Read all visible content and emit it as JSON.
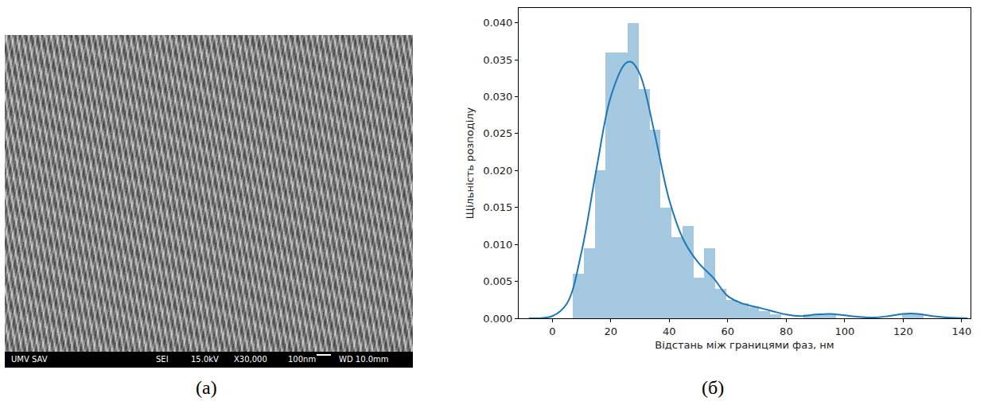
{
  "chart_data": {
    "type": "histogram",
    "panel_label": "(б)",
    "x_label": "Відстань між границями фаз, нм",
    "y_label": "Щільність розподілу",
    "xlim": [
      -11.5,
      143
    ],
    "ylim": [
      0,
      0.042
    ],
    "xticks": [
      0,
      20,
      40,
      60,
      80,
      100,
      120,
      140
    ],
    "yticks": [
      {
        "value": 0,
        "label": "0.000"
      },
      {
        "value": 0.005,
        "label": "0.005"
      },
      {
        "value": 0.01,
        "label": "0.010"
      },
      {
        "value": 0.015,
        "label": "0.015"
      },
      {
        "value": 0.02,
        "label": "0.020"
      },
      {
        "value": 0.025,
        "label": "0.025"
      },
      {
        "value": 0.03,
        "label": "0.030"
      },
      {
        "value": 0.035,
        "label": "0.035"
      },
      {
        "value": 0.04,
        "label": "0.040"
      }
    ],
    "grid": false,
    "series": [
      {
        "type": "histogram",
        "color": "#1f77b4",
        "bins": [
          7,
          10.75,
          14.5,
          18.25,
          22,
          25.75,
          29.5,
          33.25,
          37,
          40.75,
          44.5,
          48.25,
          52,
          55.75,
          59.5,
          63.25,
          67,
          70.75,
          74.5,
          78.25,
          82,
          85.75,
          89.5,
          93.25,
          97,
          100.75,
          104.5,
          108.25,
          112,
          115.75,
          119.5,
          123.25,
          127
        ],
        "values": [
          0.006,
          0.0095,
          0.02,
          0.036,
          0.036,
          0.04,
          0.031,
          0.0255,
          0.015,
          0.011,
          0.0125,
          0.0055,
          0.0095,
          0.004,
          0.0025,
          0.002,
          0.0015,
          0.001,
          0.0005,
          0,
          0,
          0.0005,
          0.0005,
          0.0005,
          0,
          0,
          0,
          0,
          0,
          0,
          0.0005,
          0.0005
        ]
      },
      {
        "type": "line",
        "color": "#1f77b4",
        "x": [
          -8,
          0,
          5,
          10,
          15,
          20,
          25,
          27,
          30,
          35,
          40,
          45,
          50,
          55,
          60,
          65,
          70,
          75,
          80,
          85,
          90,
          95,
          100,
          105,
          110,
          115,
          120,
          125,
          130,
          135,
          142
        ],
        "values": [
          0,
          0.0003,
          0.002,
          0.009,
          0.02,
          0.03,
          0.0345,
          0.0347,
          0.033,
          0.025,
          0.016,
          0.0105,
          0.0075,
          0.0055,
          0.003,
          0.002,
          0.0015,
          0.001,
          0.0005,
          0.0003,
          0.0005,
          0.0006,
          0.0004,
          0.0002,
          0.0001,
          0.0003,
          0.0006,
          0.0006,
          0.0003,
          0.0001,
          0
        ]
      }
    ]
  },
  "micrograph": {
    "panel_label": "(а)",
    "info_bar": [
      "UMV SAV",
      "SEI",
      "15.0kV",
      "X30,000",
      "100nm",
      "WD 10.0mm"
    ]
  }
}
